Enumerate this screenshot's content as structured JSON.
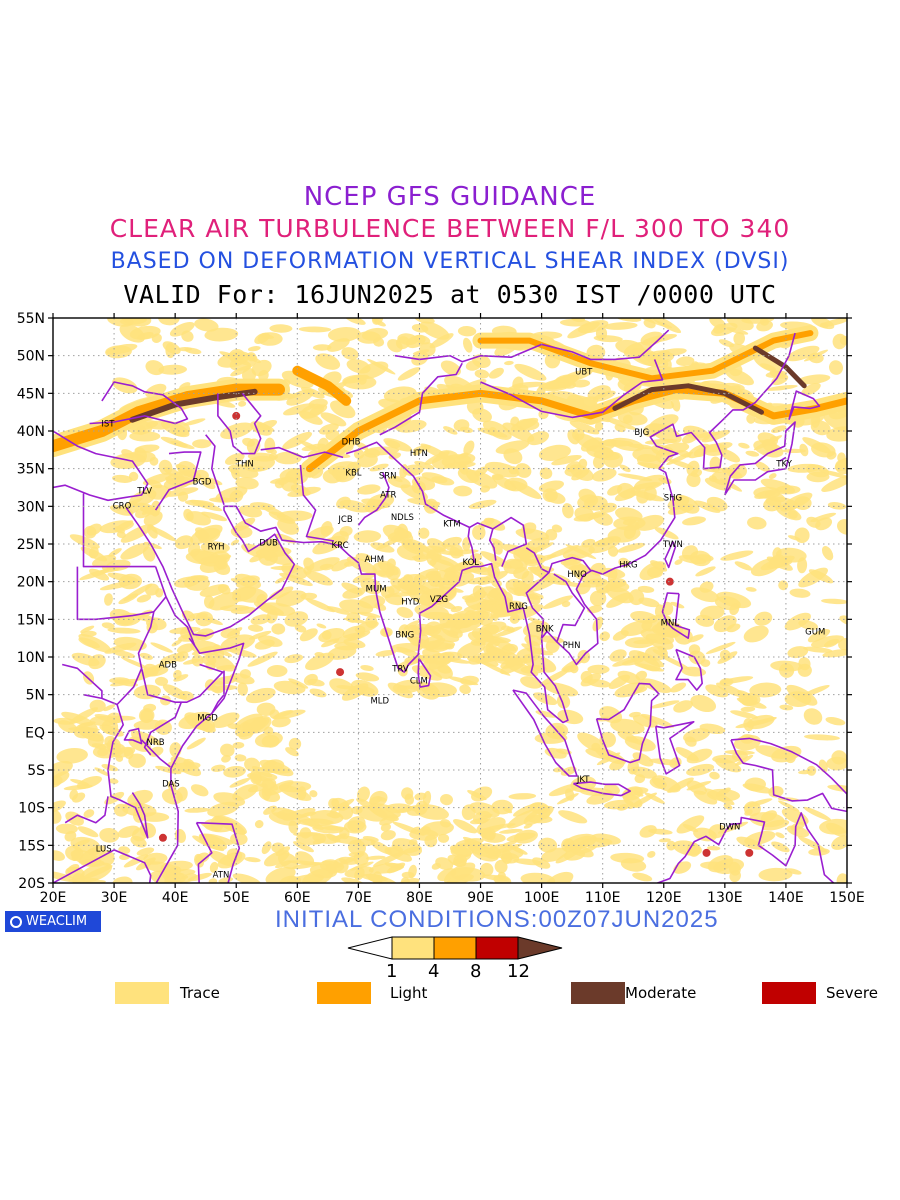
{
  "header": {
    "line1": "NCEP GFS GUIDANCE",
    "line2": "CLEAR AIR TURBULENCE BETWEEN F/L 300 TO 340",
    "line3": "BASED ON DEFORMATION VERTICAL SHEAR INDEX (DVSI)",
    "line4": "VALID For: 16JUN2025 at 0530 IST /0000 UTC"
  },
  "colors": {
    "line1": "#8b1fd0",
    "line2": "#e0207a",
    "line3": "#2450e0",
    "line4": "#000000",
    "trace": "#ffe27d",
    "light": "#ffa000",
    "moderate": "#6b3a2a",
    "severe": "#c00000",
    "coast": "#9a1ed0",
    "grid": "#a0a0a0",
    "init": "#4a6ee0",
    "brand": "#1f48d8"
  },
  "map": {
    "lat_labels": [
      "55N",
      "50N",
      "45N",
      "40N",
      "35N",
      "30N",
      "25N",
      "20N",
      "15N",
      "10N",
      "5N",
      "EQ",
      "5S",
      "10S",
      "15S",
      "20S"
    ],
    "lon_labels": [
      "20E",
      "30E",
      "40E",
      "50E",
      "60E",
      "70E",
      "80E",
      "90E",
      "100E",
      "110E",
      "120E",
      "130E",
      "140E",
      "150E"
    ],
    "extent": {
      "lon_min": 20,
      "lon_max": 150,
      "lat_min": -20,
      "lat_max": 55
    },
    "stations": [
      {
        "code": "IST",
        "lon": 29,
        "lat": 41
      },
      {
        "code": "TLV",
        "lon": 35,
        "lat": 32.1
      },
      {
        "code": "CRO",
        "lon": 31.3,
        "lat": 30.1
      },
      {
        "code": "BGD",
        "lon": 44.4,
        "lat": 33.3
      },
      {
        "code": "THN",
        "lon": 51.4,
        "lat": 35.7
      },
      {
        "code": "RYH",
        "lon": 46.7,
        "lat": 24.7
      },
      {
        "code": "DUB",
        "lon": 55.3,
        "lat": 25.2
      },
      {
        "code": "DHB",
        "lon": 68.8,
        "lat": 38.6
      },
      {
        "code": "HTN",
        "lon": 79.9,
        "lat": 37.1
      },
      {
        "code": "KBL",
        "lon": 69.2,
        "lat": 34.5
      },
      {
        "code": "SRN",
        "lon": 74.8,
        "lat": 34.1
      },
      {
        "code": "ATR",
        "lon": 74.9,
        "lat": 31.6
      },
      {
        "code": "JCB",
        "lon": 67.9,
        "lat": 28.3
      },
      {
        "code": "NDLS",
        "lon": 77.2,
        "lat": 28.6
      },
      {
        "code": "KTM",
        "lon": 85.3,
        "lat": 27.7
      },
      {
        "code": "KRC",
        "lon": 67,
        "lat": 24.9
      },
      {
        "code": "AHM",
        "lon": 72.6,
        "lat": 23
      },
      {
        "code": "KOL",
        "lon": 88.4,
        "lat": 22.6
      },
      {
        "code": "MUM",
        "lon": 72.9,
        "lat": 19.1
      },
      {
        "code": "HYD",
        "lon": 78.5,
        "lat": 17.4
      },
      {
        "code": "VZG",
        "lon": 83.2,
        "lat": 17.7
      },
      {
        "code": "BNG",
        "lon": 77.6,
        "lat": 13
      },
      {
        "code": "TRV",
        "lon": 76.9,
        "lat": 8.5
      },
      {
        "code": "CLM",
        "lon": 79.9,
        "lat": 6.9
      },
      {
        "code": "MLD",
        "lon": 73.5,
        "lat": 4.2
      },
      {
        "code": "UBT",
        "lon": 106.9,
        "lat": 47.9
      },
      {
        "code": "BJG",
        "lon": 116.4,
        "lat": 39.9
      },
      {
        "code": "TKY",
        "lon": 139.7,
        "lat": 35.7
      },
      {
        "code": "SHG",
        "lon": 121.5,
        "lat": 31.2
      },
      {
        "code": "TWN",
        "lon": 121.5,
        "lat": 25
      },
      {
        "code": "HKG",
        "lon": 114.2,
        "lat": 22.3
      },
      {
        "code": "HNO",
        "lon": 105.8,
        "lat": 21
      },
      {
        "code": "RNG",
        "lon": 96.2,
        "lat": 16.8
      },
      {
        "code": "BNK",
        "lon": 100.5,
        "lat": 13.8
      },
      {
        "code": "PHN",
        "lon": 104.9,
        "lat": 11.6
      },
      {
        "code": "MNL",
        "lon": 121,
        "lat": 14.6
      },
      {
        "code": "GUM",
        "lon": 144.8,
        "lat": 13.4
      },
      {
        "code": "ADB",
        "lon": 38.8,
        "lat": 9
      },
      {
        "code": "MGD",
        "lon": 45.3,
        "lat": 2
      },
      {
        "code": "NRB",
        "lon": 36.8,
        "lat": -1.3
      },
      {
        "code": "DAS",
        "lon": 39.3,
        "lat": -6.8
      },
      {
        "code": "LUS",
        "lon": 28.3,
        "lat": -15.4
      },
      {
        "code": "ATN",
        "lon": 47.5,
        "lat": -18.9
      },
      {
        "code": "JKT",
        "lon": 106.8,
        "lat": -6.2
      },
      {
        "code": "DWN",
        "lon": 130.8,
        "lat": -12.5
      }
    ]
  },
  "brand": "WEACLIM",
  "initial_conditions": "INITIAL CONDITIONS:00Z07JUN2025",
  "colorbar": {
    "ticks": [
      "1",
      "4",
      "8",
      "12"
    ]
  },
  "legend": [
    {
      "label": "Trace",
      "color": "#ffe27d"
    },
    {
      "label": "Light",
      "color": "#ffa000"
    },
    {
      "label": "Moderate",
      "color": "#6b3a2a"
    },
    {
      "label": "Severe",
      "color": "#c00000"
    }
  ]
}
